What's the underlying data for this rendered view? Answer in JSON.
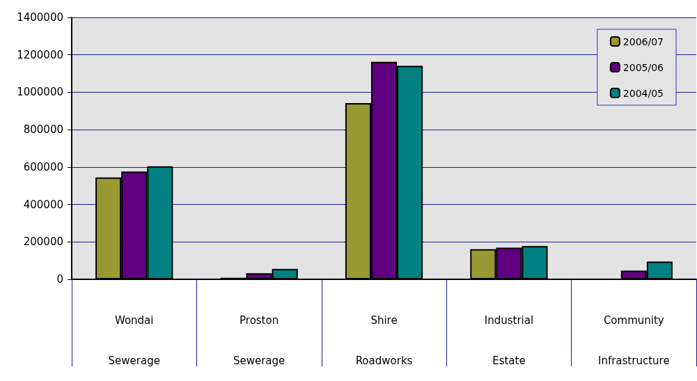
{
  "chart_data": {
    "type": "bar",
    "categories": [
      "Wondai Sewerage",
      "Proston Sewerage",
      "Shire Roadworks",
      "Industrial Estate",
      "Community Infrastructure"
    ],
    "series": [
      {
        "name": "2006/07",
        "color": "#999933",
        "values": [
          545000,
          8000,
          942000,
          161000,
          null
        ]
      },
      {
        "name": "2005/06",
        "color": "#5f0080",
        "values": [
          576000,
          33000,
          1163000,
          169000,
          47000
        ]
      },
      {
        "name": "2004/05",
        "color": "#008080",
        "values": [
          604000,
          56000,
          1141000,
          178000,
          95000
        ]
      }
    ],
    "ylim": [
      0,
      1400000
    ],
    "yticks": [
      0,
      200000,
      400000,
      600000,
      800000,
      1000000,
      1200000,
      1400000
    ],
    "grid": "y",
    "legend": "top right"
  }
}
